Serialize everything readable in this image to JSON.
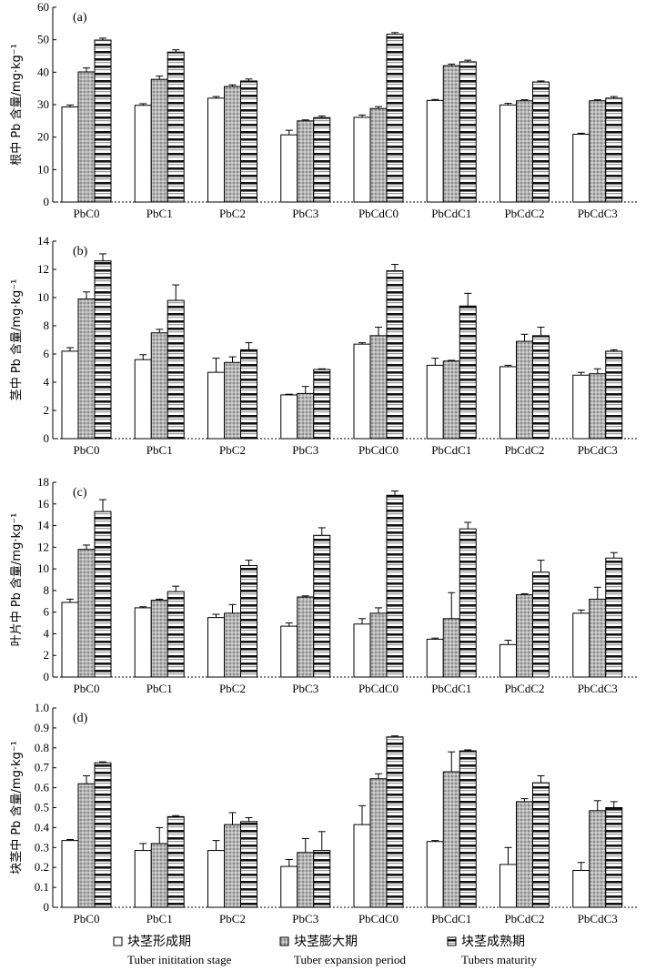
{
  "chart_data": [
    {
      "type": "bar",
      "panel_label": "(a)",
      "ylabel": "根中 Pb 含量/mg·kg⁻¹",
      "ylim": [
        0,
        60
      ],
      "yticks": [
        0,
        10,
        20,
        30,
        40,
        50,
        60
      ],
      "categories": [
        "PbC0",
        "PbC1",
        "PbC2",
        "PbC3",
        "PbCdC0",
        "PbCdC1",
        "PbCdC2",
        "PbCdC3"
      ],
      "series": [
        {
          "name": "块茎形成期",
          "values": [
            29.3,
            29.8,
            32,
            20.7,
            26.1,
            31.3,
            29.9,
            20.9
          ],
          "errors": [
            0.6,
            0.5,
            0.5,
            1.4,
            0.7,
            0.3,
            0.5,
            0.3
          ]
        },
        {
          "name": "块茎膨大期",
          "values": [
            40.1,
            37.8,
            35.6,
            25,
            28.8,
            42,
            31.2,
            31.2
          ],
          "errors": [
            1.2,
            1,
            0.5,
            0.3,
            0.6,
            0.5,
            0.3,
            0.3
          ]
        },
        {
          "name": "块茎成熟期",
          "values": [
            49.9,
            46.2,
            37.3,
            26,
            51.7,
            43.2,
            37,
            32
          ],
          "errors": [
            0.6,
            0.7,
            0.6,
            0.5,
            0.5,
            0.5,
            0.3,
            0.5
          ]
        }
      ]
    },
    {
      "type": "bar",
      "panel_label": "(b)",
      "ylabel": "茎中 Pb 含量/mg·kg⁻¹",
      "ylim": [
        0,
        14
      ],
      "yticks": [
        0,
        2,
        4,
        6,
        8,
        10,
        12,
        14
      ],
      "categories": [
        "PbC0",
        "PbC1",
        "PbC2",
        "PbC3",
        "PbCdC0",
        "PbCdC1",
        "PbCdC2",
        "PbCdC3"
      ],
      "series": [
        {
          "name": "块茎形成期",
          "values": [
            6.2,
            5.6,
            4.7,
            3.1,
            6.7,
            5.2,
            5.1,
            4.5
          ],
          "errors": [
            0.25,
            0.35,
            1,
            0.05,
            0.1,
            0.5,
            0.1,
            0.2
          ]
        },
        {
          "name": "块茎膨大期",
          "values": [
            9.9,
            7.5,
            5.4,
            3.2,
            7.3,
            5.5,
            6.9,
            4.6
          ],
          "errors": [
            0.5,
            0.25,
            0.4,
            0.5,
            0.6,
            0.05,
            0.5,
            0.35
          ]
        },
        {
          "name": "块茎成熟期",
          "values": [
            12.6,
            9.8,
            6.3,
            4.9,
            11.9,
            9.4,
            7.3,
            6.2
          ],
          "errors": [
            0.5,
            1.1,
            0.5,
            0.05,
            0.45,
            0.9,
            0.6,
            0.1
          ]
        }
      ]
    },
    {
      "type": "bar",
      "panel_label": "(c)",
      "ylabel": "叶片中 Pb 含量/mg·kg⁻¹",
      "ylim": [
        0,
        18
      ],
      "yticks": [
        0,
        2,
        4,
        6,
        8,
        10,
        12,
        14,
        16,
        18
      ],
      "categories": [
        "PbC0",
        "PbC1",
        "PbC2",
        "PbC3",
        "PbCdC0",
        "PbCdC1",
        "PbCdC2",
        "PbCdC3"
      ],
      "series": [
        {
          "name": "块茎形成期",
          "values": [
            6.9,
            6.4,
            5.5,
            4.7,
            4.9,
            3.5,
            3,
            5.9
          ],
          "errors": [
            0.3,
            0.1,
            0.3,
            0.3,
            0.5,
            0.1,
            0.4,
            0.3
          ]
        },
        {
          "name": "块茎膨大期",
          "values": [
            11.8,
            7.1,
            5.9,
            7.4,
            5.9,
            5.4,
            7.6,
            7.2
          ],
          "errors": [
            0.4,
            0.1,
            0.8,
            0.1,
            0.5,
            2.4,
            0.1,
            1.1
          ]
        },
        {
          "name": "块茎成熟期",
          "values": [
            15.3,
            7.9,
            10.3,
            13.1,
            16.8,
            13.7,
            9.7,
            11
          ],
          "errors": [
            1.1,
            0.5,
            0.5,
            0.7,
            0.4,
            0.6,
            1.1,
            0.5
          ]
        }
      ]
    },
    {
      "type": "bar",
      "panel_label": "(d)",
      "ylabel": "块茎中 Pb 含量/mg·kg⁻¹",
      "ylim": [
        0,
        1.0
      ],
      "yticks": [
        "0",
        "0.1",
        "0.2",
        "0.3",
        "0.4",
        "0.5",
        "0.6",
        "0.7",
        "0.8",
        "0.9",
        "1.0"
      ],
      "categories": [
        "PbC0",
        "PbC1",
        "PbC2",
        "PbC3",
        "PbCdC0",
        "PbCdC1",
        "PbCdC2",
        "PbCdC3"
      ],
      "series": [
        {
          "name": "块茎形成期",
          "values": [
            0.335,
            0.285,
            0.285,
            0.205,
            0.415,
            0.33,
            0.215,
            0.185
          ],
          "errors": [
            0.005,
            0.035,
            0.05,
            0.035,
            0.095,
            0.005,
            0.085,
            0.04
          ]
        },
        {
          "name": "块茎膨大期",
          "values": [
            0.62,
            0.32,
            0.415,
            0.275,
            0.645,
            0.68,
            0.53,
            0.485
          ],
          "errors": [
            0.04,
            0.08,
            0.06,
            0.07,
            0.025,
            0.1,
            0.015,
            0.05
          ]
        },
        {
          "name": "块茎成熟期",
          "values": [
            0.725,
            0.455,
            0.43,
            0.285,
            0.855,
            0.785,
            0.625,
            0.5
          ],
          "errors": [
            0.005,
            0.005,
            0.02,
            0.095,
            0.005,
            0.005,
            0.035,
            0.03
          ]
        }
      ]
    }
  ],
  "legend": [
    {
      "label": "块茎形成期",
      "sublabel": "Tuber inititation stage",
      "pattern": "white"
    },
    {
      "label": "块茎膨大期",
      "sublabel": "Tuber expansion period",
      "pattern": "gray-dotted"
    },
    {
      "label": "块茎成熟期",
      "sublabel": "Tubers maturity",
      "pattern": "horizontal-stripes"
    }
  ],
  "colors": {
    "axis": "#000000",
    "bar_outline": "#000000",
    "white_fill": "#ffffff",
    "gray_fill": "#a9a9a9",
    "stripe_dark": "#000000"
  }
}
